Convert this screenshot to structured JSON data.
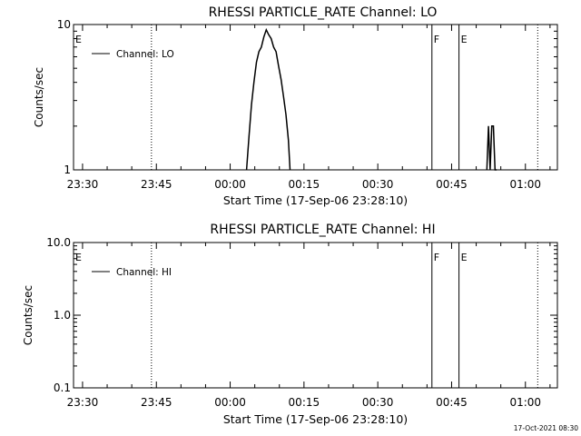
{
  "chart_data": [
    {
      "type": "line",
      "title": "RHESSI PARTICLE_RATE Channel: LO",
      "xlabel": "Start Time (17-Sep-06 23:28:10)",
      "ylabel": "Counts/sec",
      "y_scale": "log",
      "ylim": [
        1,
        10
      ],
      "yticks": [
        {
          "value": 1,
          "label": "1"
        },
        {
          "value": 10,
          "label": "10"
        }
      ],
      "xlim": [
        "23:28:10",
        "01:06:30"
      ],
      "xticks": [
        "23:30",
        "23:45",
        "00:00",
        "00:15",
        "00:30",
        "00:45",
        "01:00"
      ],
      "legend": {
        "label": "Channel: LO",
        "position": "top-left"
      },
      "markers": [
        {
          "time": "23:30:00",
          "label": "E",
          "style": "none"
        },
        {
          "time": "23:44:00",
          "label": "",
          "style": "dotted"
        },
        {
          "time": "00:41:00",
          "label": "F",
          "style": "solid"
        },
        {
          "time": "00:46:30",
          "label": "E",
          "style": "solid"
        },
        {
          "time": "01:02:30",
          "label": "",
          "style": "dotted"
        }
      ],
      "series": [
        {
          "name": "Channel: LO",
          "x": [
            "00:03:20",
            "00:03:50",
            "00:04:20",
            "00:04:50",
            "00:05:20",
            "00:05:50",
            "00:06:20",
            "00:06:50",
            "00:07:20",
            "00:07:50",
            "00:08:20",
            "00:08:50",
            "00:09:20",
            "00:09:50",
            "00:10:20",
            "00:10:50",
            "00:11:20",
            "00:11:50",
            "00:12:10",
            "00:52:10",
            "00:52:30",
            "00:52:50",
            "00:53:10",
            "00:53:30",
            "00:53:50",
            "00:54:10"
          ],
          "y": [
            1.0,
            1.7,
            2.8,
            4.0,
            5.5,
            6.5,
            7.0,
            8.2,
            9.2,
            8.5,
            8.0,
            7.0,
            6.5,
            5.2,
            4.2,
            3.2,
            2.4,
            1.6,
            1.0,
            1.0,
            2.0,
            1.0,
            2.0,
            2.0,
            1.0,
            1.0
          ]
        }
      ]
    },
    {
      "type": "line",
      "title": "RHESSI PARTICLE_RATE Channel: HI",
      "xlabel": "Start Time (17-Sep-06 23:28:10)",
      "ylabel": "Counts/sec",
      "y_scale": "log",
      "ylim": [
        0.1,
        10
      ],
      "yticks": [
        {
          "value": 0.1,
          "label": "0.1"
        },
        {
          "value": 1,
          "label": "1.0"
        },
        {
          "value": 10,
          "label": "10.0"
        }
      ],
      "xlim": [
        "23:28:10",
        "01:06:30"
      ],
      "xticks": [
        "23:30",
        "23:45",
        "00:00",
        "00:15",
        "00:30",
        "00:45",
        "01:00"
      ],
      "legend": {
        "label": "Channel: HI",
        "position": "top-left"
      },
      "markers": [
        {
          "time": "23:30:00",
          "label": "E",
          "style": "none"
        },
        {
          "time": "23:44:00",
          "label": "",
          "style": "dotted"
        },
        {
          "time": "00:41:00",
          "label": "F",
          "style": "solid"
        },
        {
          "time": "00:46:30",
          "label": "E",
          "style": "solid"
        },
        {
          "time": "01:02:30",
          "label": "",
          "style": "dotted"
        }
      ],
      "series": [
        {
          "name": "Channel: HI",
          "x": [],
          "y": []
        }
      ]
    }
  ],
  "footer": {
    "timestamp": "17-Oct-2021 08:30"
  }
}
